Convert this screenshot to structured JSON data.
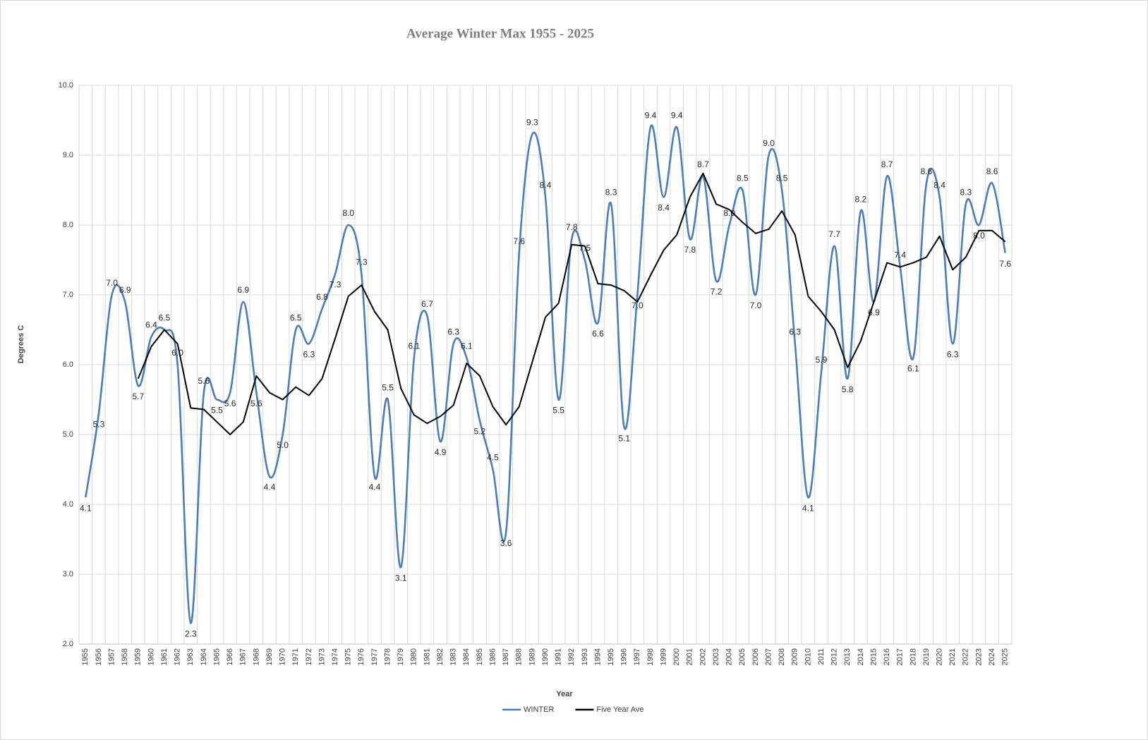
{
  "chart_data": {
    "type": "line",
    "title": "Average Winter Max 1955 - 2025",
    "xlabel": "Year",
    "ylabel": "Degrees C",
    "categories": [
      "1955",
      "1956",
      "1957",
      "1958",
      "1959",
      "1960",
      "1961",
      "1962",
      "1963",
      "1964",
      "1965",
      "1966",
      "1967",
      "1968",
      "1969",
      "1970",
      "1971",
      "1972",
      "1973",
      "1974",
      "1975",
      "1976",
      "1977",
      "1978",
      "1979",
      "1980",
      "1981",
      "1982",
      "1983",
      "1984",
      "1985",
      "1986",
      "1987",
      "1988",
      "1989",
      "1990",
      "1991",
      "1992",
      "1993",
      "1994",
      "1995",
      "1996",
      "1997",
      "1998",
      "1999",
      "2000",
      "2001",
      "2002",
      "2003",
      "2004",
      "2005",
      "2006",
      "2007",
      "2008",
      "2009",
      "2010",
      "2011",
      "2012",
      "2013",
      "2014",
      "2015",
      "2016",
      "2017",
      "2018",
      "2019",
      "2020",
      "2021",
      "2022",
      "2023",
      "2024",
      "2025"
    ],
    "series": [
      {
        "name": "WINTER",
        "color": "#4a7ebb",
        "smooth": true,
        "values": [
          4.1,
          5.3,
          7.0,
          6.9,
          5.7,
          6.4,
          6.5,
          6.0,
          2.3,
          5.6,
          5.5,
          5.6,
          6.9,
          5.6,
          4.4,
          5.0,
          6.5,
          6.3,
          6.8,
          7.3,
          8.0,
          7.3,
          4.4,
          5.5,
          3.1,
          6.1,
          6.7,
          4.9,
          6.3,
          6.1,
          5.2,
          4.5,
          3.6,
          7.6,
          9.3,
          8.4,
          5.5,
          7.8,
          7.5,
          6.6,
          8.3,
          5.1,
          7.0,
          9.4,
          8.4,
          9.4,
          7.8,
          8.7,
          7.2,
          8.0,
          8.5,
          7.0,
          9.0,
          8.5,
          6.3,
          4.1,
          5.9,
          7.7,
          5.8,
          8.2,
          6.9,
          8.7,
          7.4,
          6.1,
          8.6,
          8.4,
          6.3,
          8.3,
          8.0,
          8.6,
          7.6
        ],
        "value_labels": [
          "4.1",
          "5.3",
          "7.0",
          "6.9",
          "5.7",
          "6.4",
          "6.5",
          "6.0",
          "2.3",
          "5.6",
          "5.5",
          "5.6",
          "6.9",
          "5.6",
          "4.4",
          "5.0",
          "6.5",
          "6.3",
          "6.8",
          "7.3",
          "8.0",
          "7.3",
          "4.4",
          "5.5",
          "3.1",
          "6.1",
          "6.7",
          "4.9",
          "6.3",
          "6.1",
          "5.2",
          "4.5",
          "3.6",
          "7.6",
          "9.3",
          "8.4",
          "5.5",
          "7.8",
          "7.5",
          "6.6",
          "8.3",
          "5.1",
          "7.0",
          "9.4",
          "8.4",
          "9.4",
          "7.8",
          "8.7",
          "7.2",
          "8.0",
          "8.5",
          "7.0",
          "9.0",
          "8.5",
          "6.3",
          "4.1",
          "5.9",
          "7.7",
          "5.8",
          "8.2",
          "6.9",
          "8.7",
          "7.4",
          "6.1",
          "8.6",
          "8.4",
          "6.3",
          "8.3",
          "8.0",
          "8.6",
          "7.6"
        ]
      },
      {
        "name": "Five Year Ave",
        "color": "#000000",
        "smooth": false,
        "values": [
          null,
          null,
          null,
          null,
          5.8,
          6.26,
          6.5,
          6.3,
          5.38,
          5.36,
          5.18,
          5.0,
          5.18,
          5.84,
          5.6,
          5.5,
          5.68,
          5.56,
          5.8,
          6.38,
          6.98,
          7.14,
          6.76,
          6.5,
          5.66,
          5.28,
          5.16,
          5.26,
          5.42,
          6.02,
          5.84,
          5.4,
          5.14,
          5.4,
          6.04,
          6.68,
          6.88,
          7.72,
          7.7,
          7.16,
          7.14,
          7.06,
          6.9,
          7.28,
          7.64,
          7.86,
          8.4,
          8.74,
          8.3,
          8.22,
          8.04,
          7.88,
          7.94,
          8.2,
          7.86,
          6.98,
          6.76,
          6.5,
          5.96,
          6.34,
          6.9,
          7.46,
          7.4,
          7.46,
          7.54,
          7.84,
          7.36,
          7.54,
          7.92,
          7.92,
          7.76
        ]
      }
    ],
    "ylim": [
      2,
      10
    ],
    "yticks": [
      {
        "value": 2,
        "label": "2.0"
      },
      {
        "value": 3,
        "label": "3.0"
      },
      {
        "value": 4,
        "label": "4.0"
      },
      {
        "value": 5,
        "label": "5.0"
      },
      {
        "value": 6,
        "label": "6.0"
      },
      {
        "value": 7,
        "label": "7.0"
      },
      {
        "value": 8,
        "label": "8.0"
      },
      {
        "value": 9,
        "label": "9.0"
      },
      {
        "value": 10,
        "label": "10.0"
      }
    ],
    "grid": true,
    "legend": "bottom"
  }
}
